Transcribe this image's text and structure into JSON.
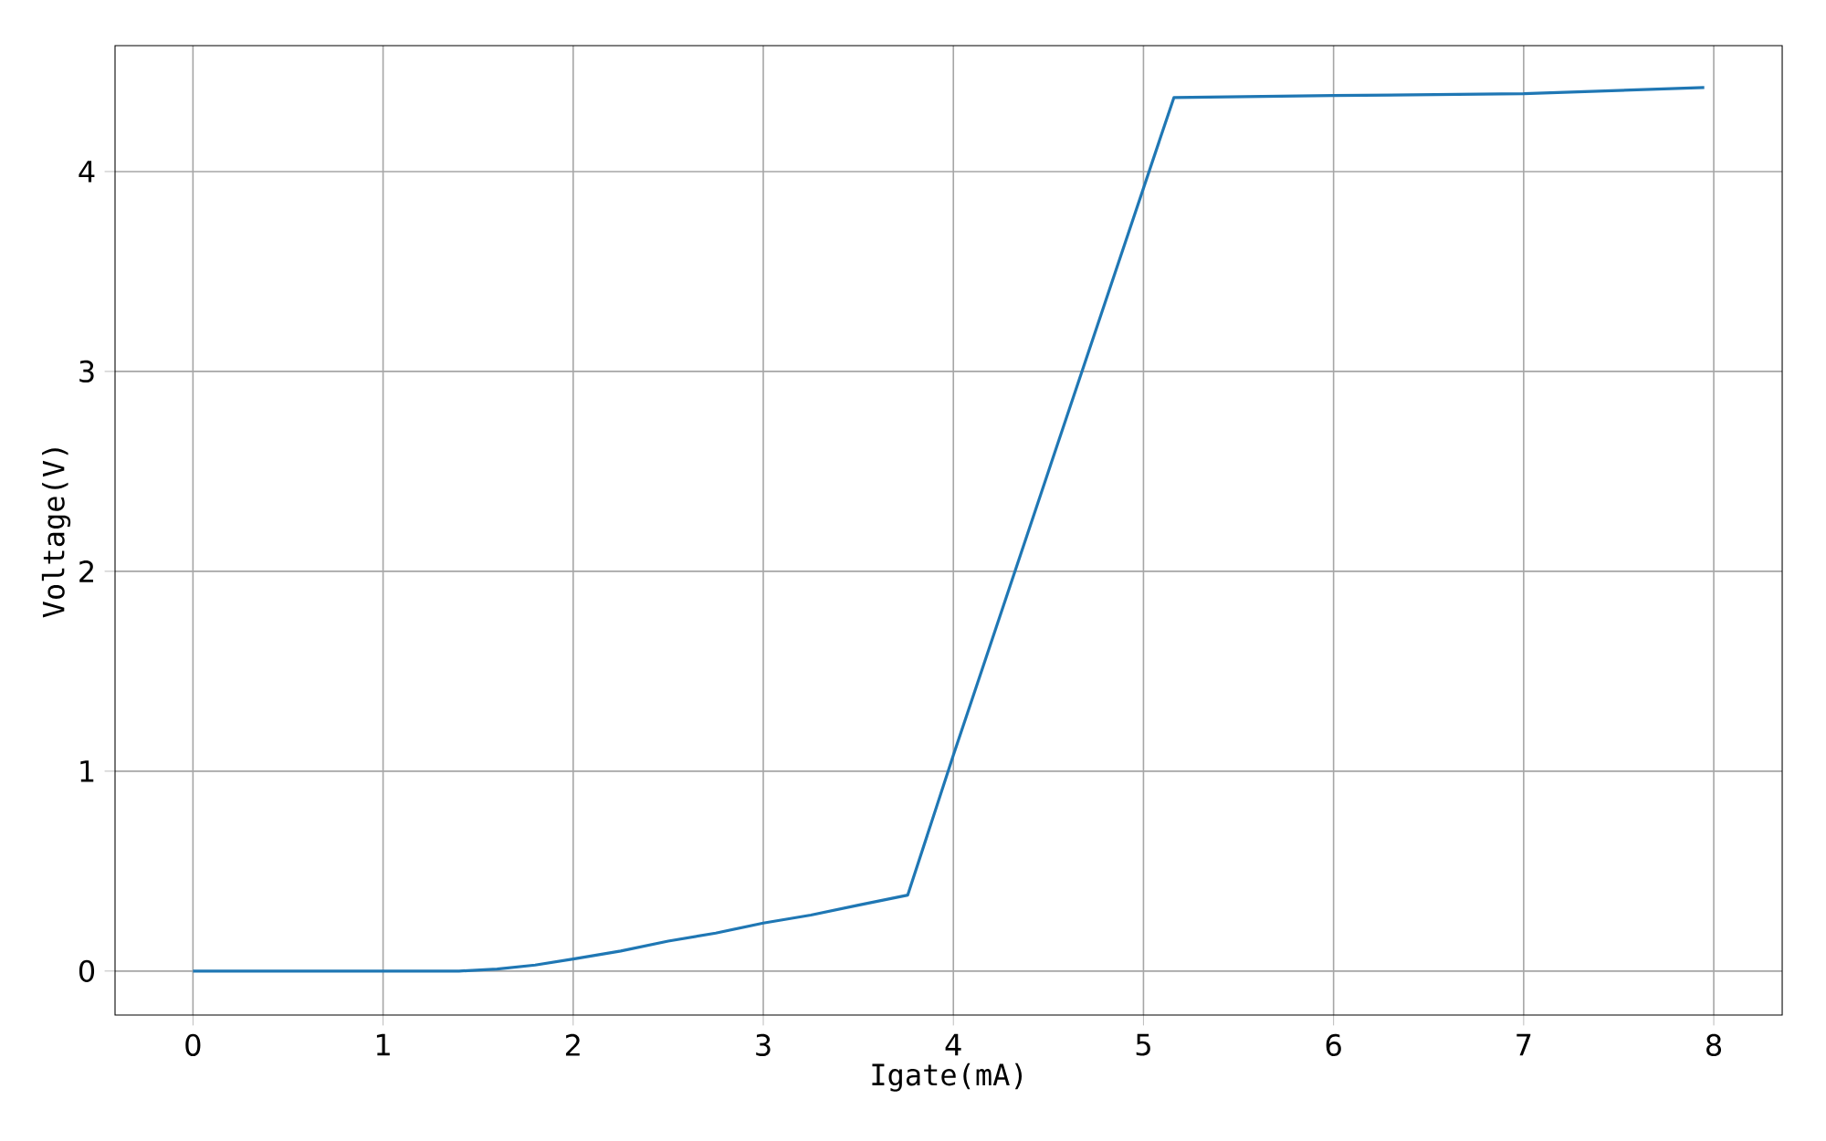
{
  "chart_data": {
    "type": "line",
    "xlabel": "Igate(mA)",
    "ylabel": "Voltage(V)",
    "x": [
      0,
      0.5,
      1.0,
      1.4,
      1.6,
      1.8,
      2.0,
      2.25,
      2.5,
      2.75,
      3.0,
      3.25,
      3.5,
      3.76,
      4.0,
      4.5,
      5.16,
      6.0,
      7.0,
      7.95
    ],
    "series": [
      {
        "color": "#1f77b4",
        "values": [
          0,
          0,
          0,
          0,
          0.01,
          0.03,
          0.06,
          0.1,
          0.15,
          0.19,
          0.24,
          0.28,
          0.33,
          0.38,
          1.08,
          2.5,
          4.37,
          4.38,
          4.39,
          4.42
        ]
      }
    ],
    "xlim": [
      -0.41,
      8.36
    ],
    "ylim": [
      -0.22,
      4.63
    ],
    "xticks": [
      0,
      1,
      2,
      3,
      4,
      5,
      6,
      7,
      8
    ],
    "yticks": [
      0,
      1,
      2,
      3,
      4
    ],
    "grid": true,
    "line_style": "solid"
  }
}
